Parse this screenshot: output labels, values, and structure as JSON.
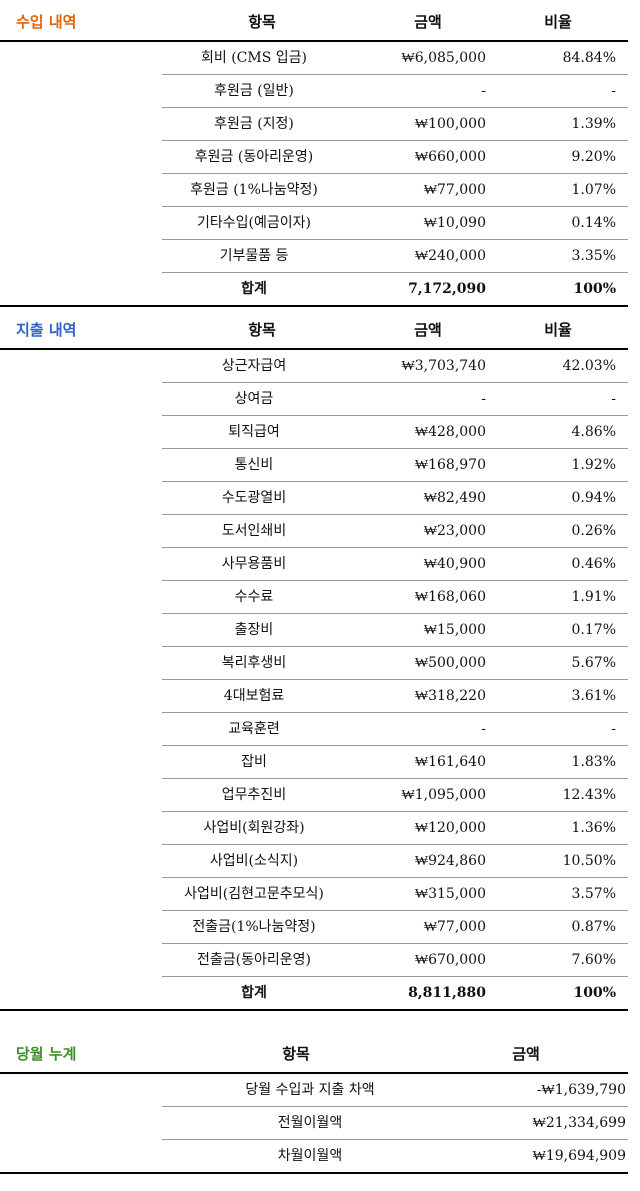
{
  "income": {
    "title": "수입 내역",
    "title_color": "#e8620c",
    "headers": {
      "item": "항목",
      "amount": "금액",
      "ratio": "비율"
    },
    "rows": [
      {
        "item": "회비 (CMS 입금)",
        "amount": "₩6,085,000",
        "ratio": "84.84%"
      },
      {
        "item": "후원금 (일반)",
        "amount": "-",
        "ratio": "-"
      },
      {
        "item": "후원금 (지정)",
        "amount": "₩100,000",
        "ratio": "1.39%"
      },
      {
        "item": "후원금 (동아리운영)",
        "amount": "₩660,000",
        "ratio": "9.20%"
      },
      {
        "item": "후원금 (1%나눔약정)",
        "amount": "₩77,000",
        "ratio": "1.07%"
      },
      {
        "item": "기타수입(예금이자)",
        "amount": "₩10,090",
        "ratio": "0.14%"
      },
      {
        "item": "기부물품 등",
        "amount": "₩240,000",
        "ratio": "3.35%"
      }
    ],
    "total": {
      "item": "합계",
      "amount": "7,172,090",
      "ratio": "100%"
    }
  },
  "expense": {
    "title": "지출 내역",
    "title_color": "#2b63c9",
    "headers": {
      "item": "항목",
      "amount": "금액",
      "ratio": "비율"
    },
    "rows": [
      {
        "item": "상근자급여",
        "amount": "₩3,703,740",
        "ratio": "42.03%"
      },
      {
        "item": "상여금",
        "amount": "-",
        "ratio": "-"
      },
      {
        "item": "퇴직급여",
        "amount": "₩428,000",
        "ratio": "4.86%"
      },
      {
        "item": "통신비",
        "amount": "₩168,970",
        "ratio": "1.92%"
      },
      {
        "item": "수도광열비",
        "amount": "₩82,490",
        "ratio": "0.94%"
      },
      {
        "item": "도서인쇄비",
        "amount": "₩23,000",
        "ratio": "0.26%"
      },
      {
        "item": "사무용품비",
        "amount": "₩40,900",
        "ratio": "0.46%"
      },
      {
        "item": "수수료",
        "amount": "₩168,060",
        "ratio": "1.91%"
      },
      {
        "item": "출장비",
        "amount": "₩15,000",
        "ratio": "0.17%"
      },
      {
        "item": "복리후생비",
        "amount": "₩500,000",
        "ratio": "5.67%"
      },
      {
        "item": "4대보험료",
        "amount": "₩318,220",
        "ratio": "3.61%"
      },
      {
        "item": "교육훈련",
        "amount": "-",
        "ratio": "-"
      },
      {
        "item": "잡비",
        "amount": "₩161,640",
        "ratio": "1.83%"
      },
      {
        "item": "업무추진비",
        "amount": "₩1,095,000",
        "ratio": "12.43%"
      },
      {
        "item": "사업비(회원강좌)",
        "amount": "₩120,000",
        "ratio": "1.36%"
      },
      {
        "item": "사업비(소식지)",
        "amount": "₩924,860",
        "ratio": "10.50%"
      },
      {
        "item": "사업비(김현고문추모식)",
        "amount": "₩315,000",
        "ratio": "3.57%"
      },
      {
        "item": "전출금(1%나눔약정)",
        "amount": "₩77,000",
        "ratio": "0.87%"
      },
      {
        "item": "전출금(동아리운영)",
        "amount": "₩670,000",
        "ratio": "7.60%"
      }
    ],
    "total": {
      "item": "합계",
      "amount": "8,811,880",
      "ratio": "100%"
    }
  },
  "monthly": {
    "title": "당월 누계",
    "title_color": "#3e8f2c",
    "headers": {
      "item": "항목",
      "amount": "금액"
    },
    "rows": [
      {
        "item": "당월 수입과 지출 차액",
        "amount": "-₩1,639,790"
      },
      {
        "item": "전월이월액",
        "amount": "₩21,334,699"
      },
      {
        "item": "차월이월액",
        "amount": "₩19,694,909"
      }
    ]
  }
}
